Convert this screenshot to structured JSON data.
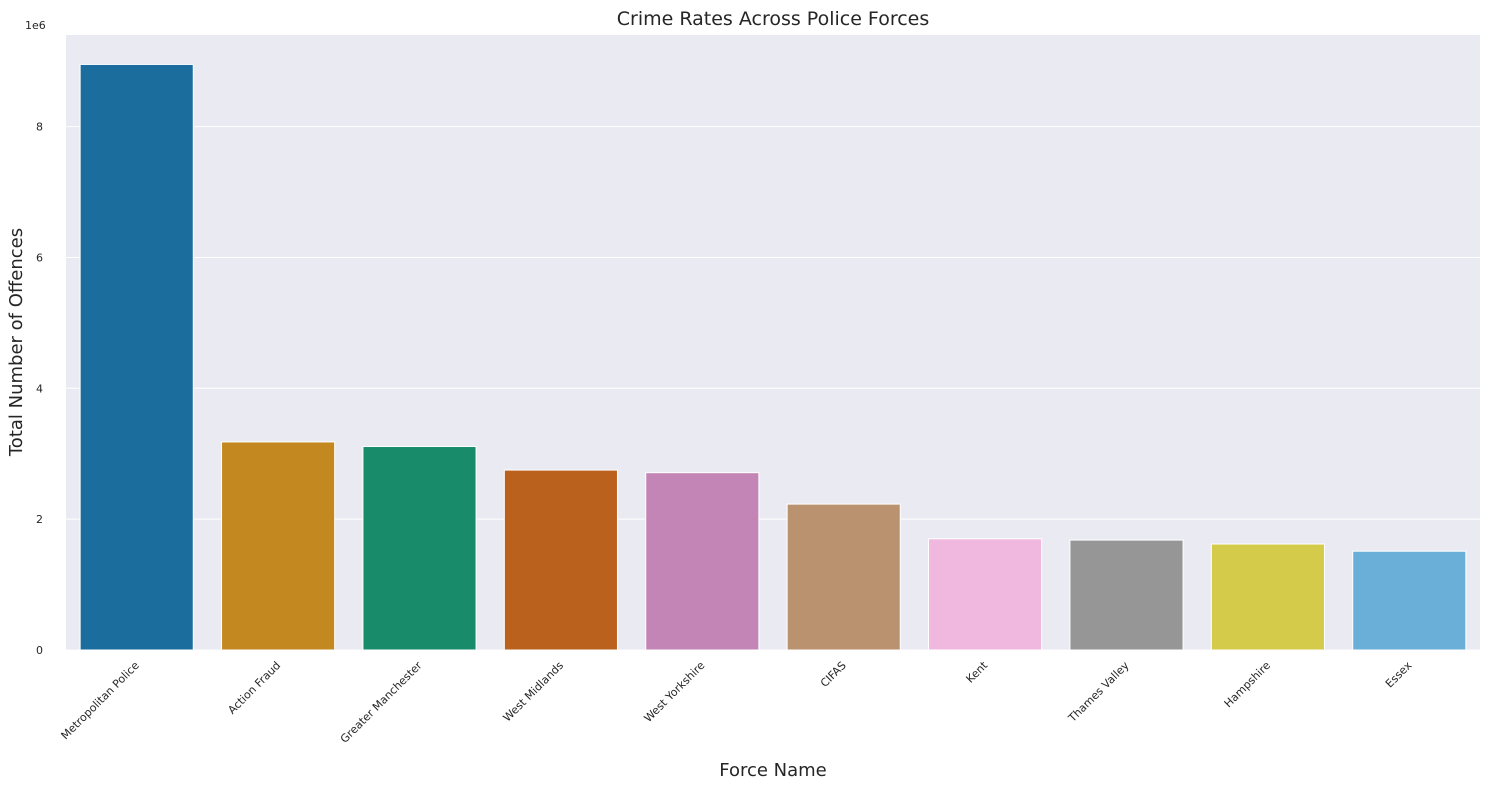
{
  "chart_data": {
    "type": "bar",
    "title": "Crime Rates Across Police Forces",
    "xlabel": "Force Name",
    "ylabel": "Total Number of Offences",
    "offset_text": "1e6",
    "categories": [
      "Metropolitan Police",
      "Action Fraud",
      "Greater Manchester",
      "West Midlands",
      "West Yorkshire",
      "CIFAS",
      "Kent",
      "Thames Valley",
      "Hampshire",
      "Essex"
    ],
    "values": [
      8950000,
      3180000,
      3110000,
      2750000,
      2710000,
      2230000,
      1700000,
      1680000,
      1620000,
      1510000
    ],
    "colors": [
      "#1a6d9c",
      "#c3881f",
      "#178b6a",
      "#b9611d",
      "#c384b6",
      "#bb9270",
      "#f1b8df",
      "#969696",
      "#d5cb4a",
      "#6aafd7"
    ],
    "ylim": [
      0,
      9400000
    ],
    "yticks": [
      0,
      2000000,
      4000000,
      6000000,
      8000000
    ],
    "ytick_labels": [
      "0",
      "2",
      "4",
      "6",
      "8"
    ],
    "grid": true,
    "background": "#eaeaf2"
  }
}
